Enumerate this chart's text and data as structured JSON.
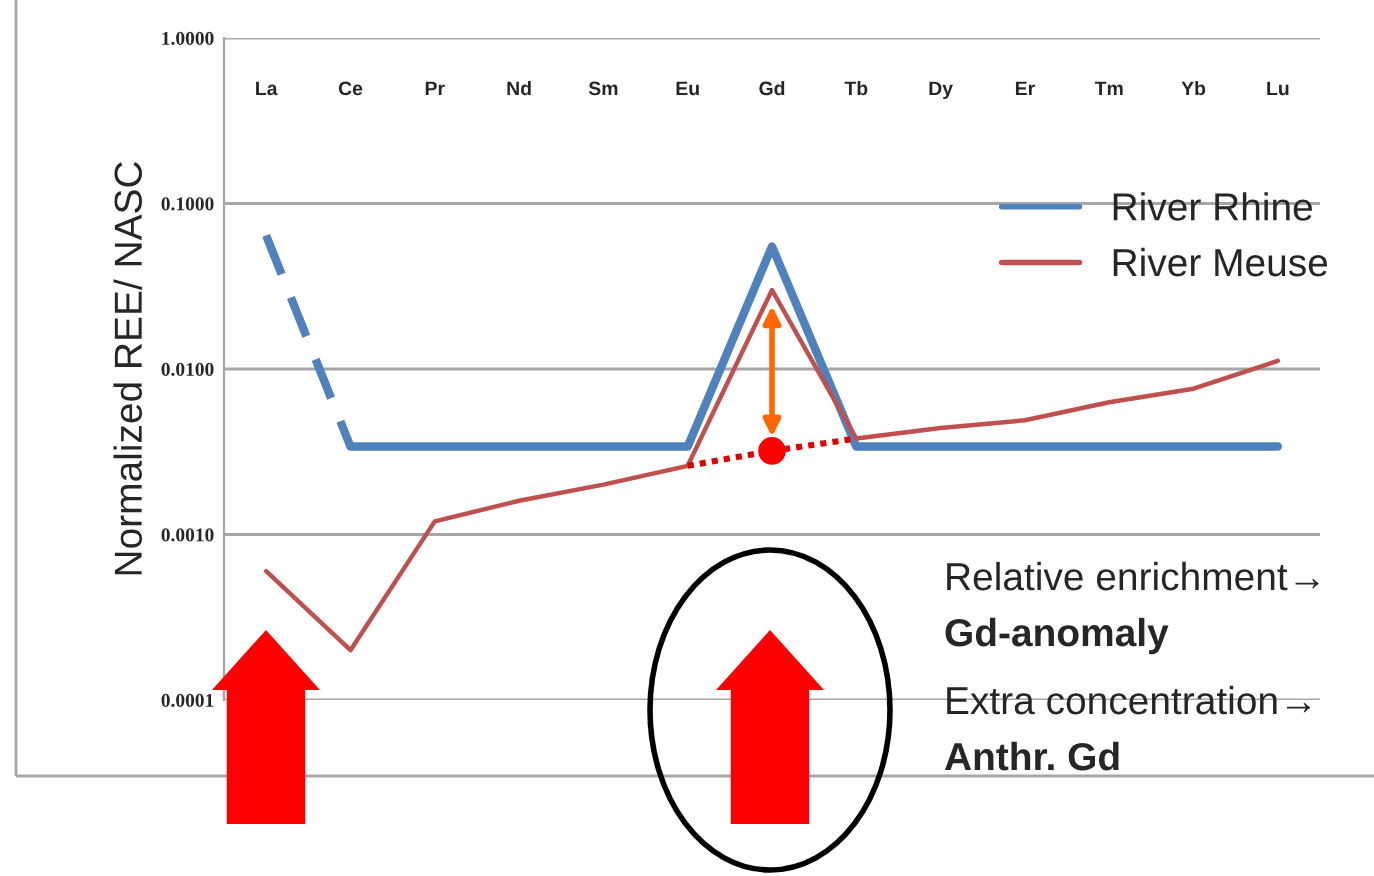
{
  "chart_data": {
    "type": "line",
    "ylabel": "Normalized REE/ NASC",
    "categories": [
      "La",
      "Ce",
      "Pr",
      "Nd",
      "Sm",
      "Eu",
      "Gd",
      "Tb",
      "Dy",
      "Er",
      "Tm",
      "Yb",
      "Lu"
    ],
    "series": [
      {
        "color": "#4f81bd",
        "line_style": "dashed",
        "values": [
          0.064,
          0.0034,
          null,
          null,
          null,
          null,
          null,
          null,
          null,
          null,
          null,
          null,
          null
        ]
      },
      {
        "name": "River Rhine",
        "color": "#4f81bd",
        "values": [
          null,
          0.0034,
          0.0034,
          0.0034,
          0.0034,
          0.0034,
          0.055,
          0.0034,
          0.0034,
          0.0034,
          0.0034,
          0.0034,
          0.0034
        ]
      },
      {
        "name": "River Meuse",
        "color": "#c0504d",
        "values": [
          0.0006,
          0.0002,
          0.0012,
          0.0016,
          0.002,
          0.0026,
          0.03,
          0.0038,
          0.0044,
          0.0049,
          0.0063,
          0.0076,
          0.0112
        ]
      },
      {
        "color": "#e00000",
        "line_style": "dotted",
        "values": [
          null,
          null,
          null,
          null,
          null,
          0.0026,
          0.0032,
          0.0038,
          null,
          null,
          null,
          null,
          null
        ]
      },
      {
        "type": "scatter",
        "marker": "circle",
        "color": "#ff0000",
        "values": [
          null,
          null,
          null,
          null,
          null,
          null,
          0.0032,
          null,
          null,
          null,
          null,
          null,
          null
        ]
      }
    ],
    "log": true,
    "ylim": [
      0.0001,
      1.0
    ],
    "yticks": [
      {
        "value": 0.0001,
        "label": "0.0001"
      },
      {
        "value": 0.001,
        "label": "0.0010"
      },
      {
        "value": 0.01,
        "label": "0.0100"
      },
      {
        "value": 0.1,
        "label": "0.1000"
      },
      {
        "value": 1.0,
        "label": "1.0000"
      }
    ],
    "grid": "y",
    "legend": "top right",
    "annotations": [
      "Relative enrichment→",
      "Gd-anomaly",
      "Extra concentration→",
      "Anthr. Gd"
    ]
  }
}
